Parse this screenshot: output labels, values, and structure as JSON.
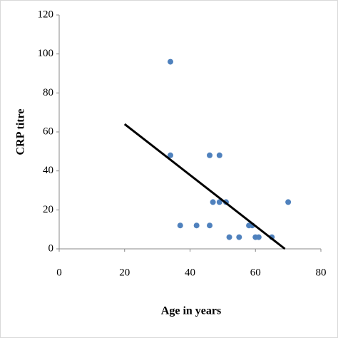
{
  "chart_data": {
    "type": "scatter",
    "x_label": "Age in years",
    "y_label": "CRP titre",
    "series": [
      {
        "color": "#4f81bd",
        "x": [
          34,
          34,
          46,
          49,
          47,
          49,
          51,
          70,
          37,
          42,
          46,
          58,
          59,
          52,
          55,
          60,
          61,
          65
        ],
        "values": [
          96,
          48,
          48,
          48,
          24,
          24,
          24,
          24,
          12,
          12,
          12,
          12,
          12,
          6,
          6,
          6,
          6,
          6
        ]
      }
    ],
    "trendline": {
      "color": "#000000",
      "x": [
        20,
        69
      ],
      "values": [
        64,
        0
      ]
    },
    "xlim": [
      0,
      80
    ],
    "xticks": [
      0,
      20,
      40,
      60,
      80
    ],
    "ylim": [
      0,
      120
    ],
    "yticks": [
      0,
      20,
      40,
      60,
      80,
      100,
      120
    ],
    "grid": false
  }
}
